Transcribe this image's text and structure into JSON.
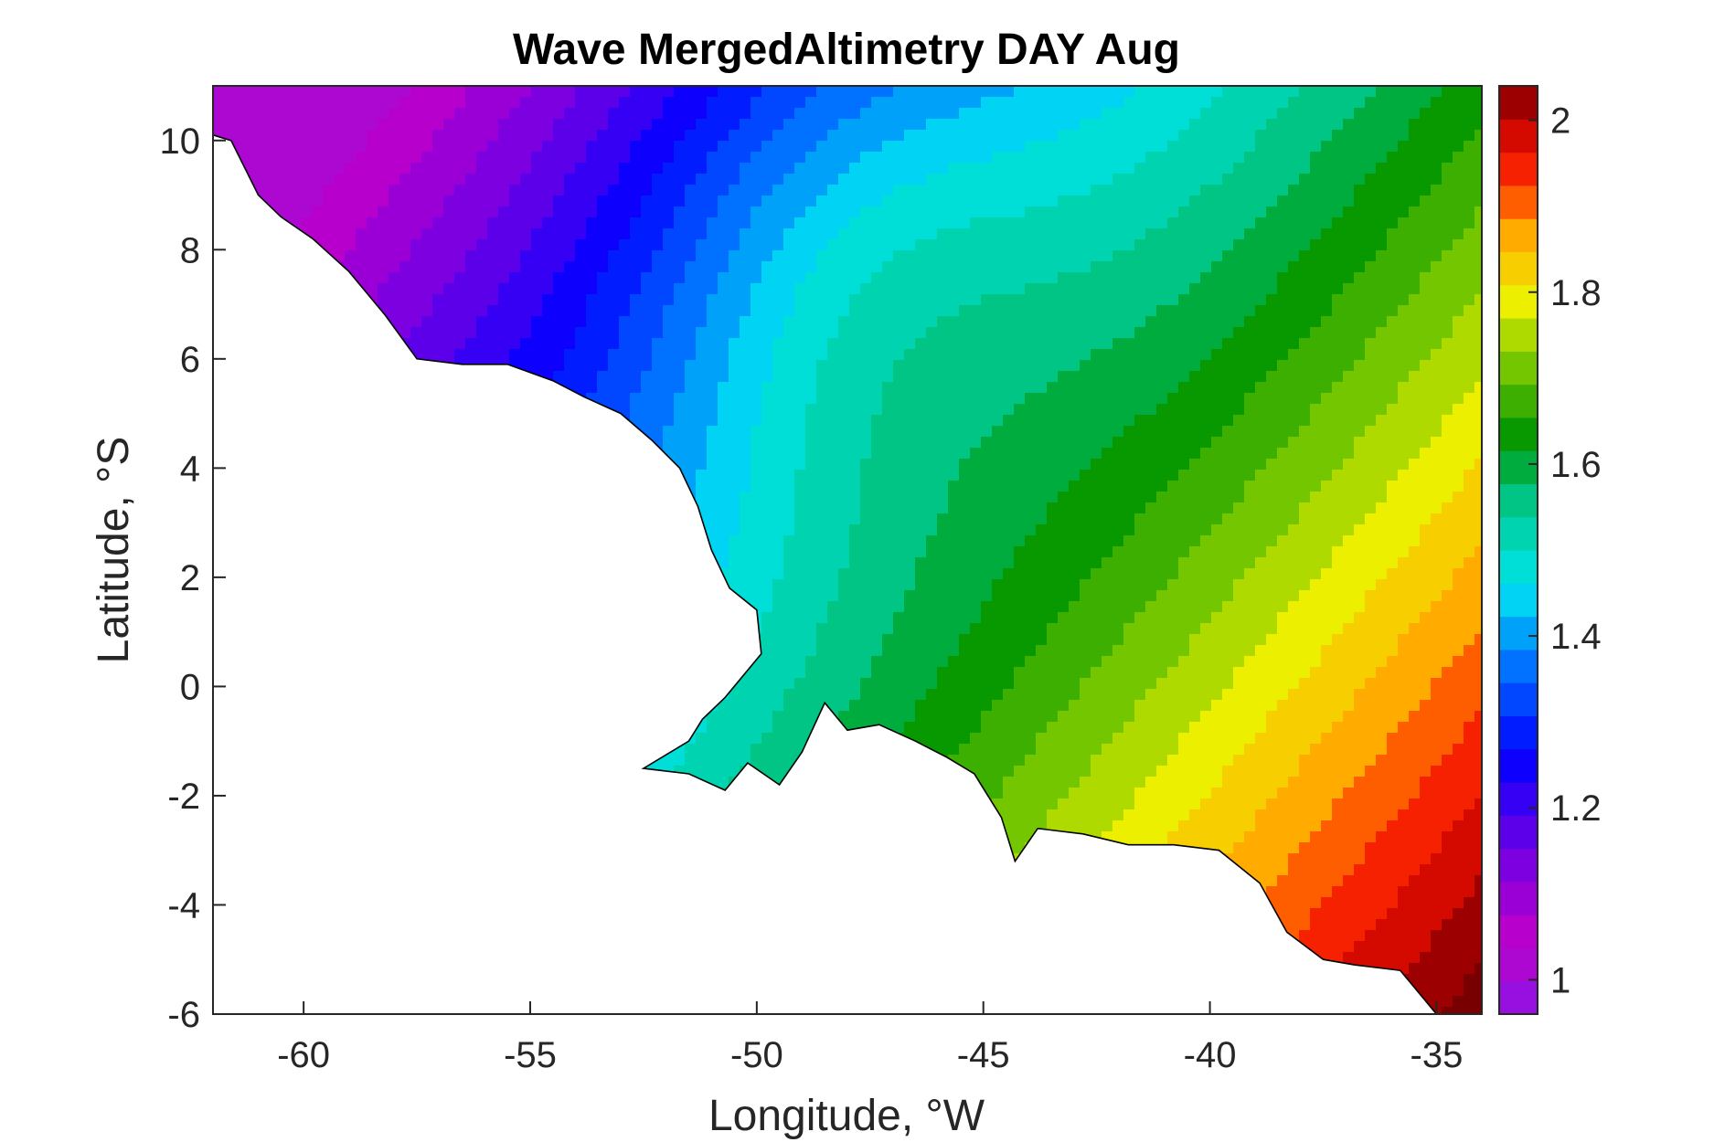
{
  "figure": {
    "title": "Wave MergedAltimetry DAY Aug",
    "xlabel": "Longitude, °W",
    "ylabel": "Latitude, °S"
  },
  "chart_data": {
    "type": "heatmap",
    "title": "Wave MergedAltimetry DAY Aug",
    "xlabel": "Longitude, °W",
    "ylabel": "Latitude, °S",
    "xlim": [
      -62,
      -34
    ],
    "ylim": [
      -6,
      11
    ],
    "xticks": [
      -60,
      -55,
      -50,
      -45,
      -40,
      -35
    ],
    "xtick_labels": [
      "-60",
      "-55",
      "-50",
      "-45",
      "-40",
      "-35"
    ],
    "yticks": [
      -6,
      -4,
      -2,
      0,
      2,
      4,
      6,
      8,
      10
    ],
    "ytick_labels": [
      "-6",
      "-4",
      "-2",
      "0",
      "2",
      "4",
      "6",
      "8",
      "10"
    ],
    "colorbar": {
      "range": [
        0.96,
        2.04
      ],
      "ticks": [
        1,
        1.2,
        1.4,
        1.6,
        1.8,
        2
      ],
      "tick_labels": [
        "1",
        "1.2",
        "1.4",
        "1.6",
        "1.8",
        "2"
      ],
      "colormap": "rainbow (violet-blue-cyan-green-yellow-orange-red-darkred)"
    },
    "fill_type": "filled contours with thin black isolines, land masked white",
    "field_description_values": {
      "min_near_coast_northwest": 1.0,
      "max_southeast_corner": 2.04
    }
  },
  "colors": {
    "land": "#ffffff",
    "frame": "#262626",
    "contour_line": "#000000"
  }
}
